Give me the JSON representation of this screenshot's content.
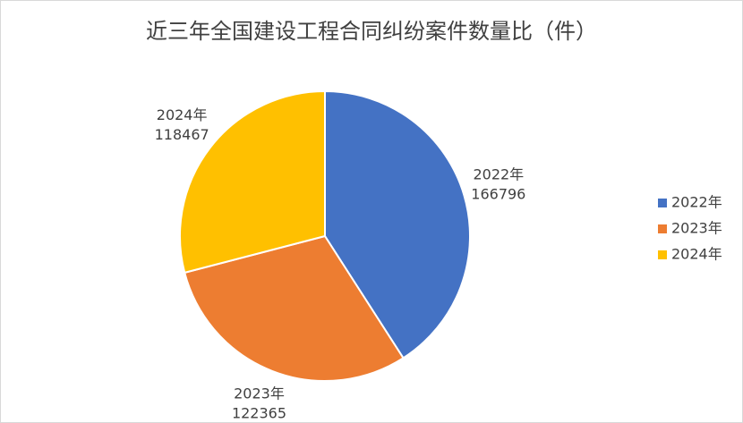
{
  "chart_data": {
    "type": "pie",
    "title": "近三年全国建设工程合同纠纷案件数量比（件）",
    "categories": [
      "2022年",
      "2023年",
      "2024年"
    ],
    "values": [
      166796,
      122365,
      118467
    ],
    "colors": [
      "#4472c4",
      "#ed7d31",
      "#ffc000"
    ],
    "legend": "right"
  }
}
